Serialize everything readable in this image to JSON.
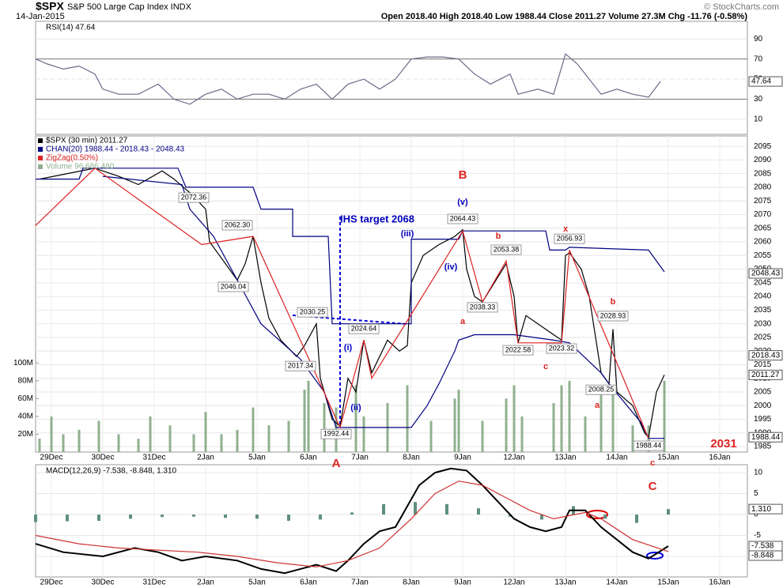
{
  "header": {
    "symbol": "$SPX",
    "name": "S&P 500 Large Cap Index INDX",
    "date": "14-Jan-2015",
    "quote": "Open 2018.40  High 2018.40  Low 1988.44  Close 2011.27  Volume 27.3M  Chg -11.76 (-0.58%)",
    "credit": "© StockCharts.com"
  },
  "chart_data": [
    {
      "type": "line",
      "title": "RSI(14) 47.64",
      "xlim": [
        -4,
        176
      ],
      "ylim": [
        -5,
        107.5
      ],
      "yticks": [
        10,
        30,
        50,
        70,
        90
      ],
      "levels": [
        30,
        70
      ],
      "series": [
        {
          "color": "#6a6a8a",
          "x": [
            -4,
            -1,
            3,
            7,
            11,
            13,
            17,
            22,
            27,
            31,
            35,
            39,
            43,
            47,
            51,
            55,
            59,
            63,
            67,
            71,
            75,
            79,
            83,
            87,
            91,
            95,
            99,
            103,
            107,
            111,
            116,
            118,
            123,
            127,
            130,
            133,
            136,
            139,
            143,
            147,
            151,
            154
          ],
          "values": [
            70,
            65,
            60,
            63,
            55,
            40,
            35,
            35,
            45,
            30,
            25,
            35,
            40,
            30,
            35,
            35,
            30,
            40,
            45,
            30,
            45,
            50,
            40,
            50,
            70,
            72,
            72,
            70,
            55,
            45,
            55,
            35,
            40,
            35,
            75,
            65,
            50,
            35,
            40,
            35,
            32,
            47.64
          ]
        }
      ],
      "last_values": [
        47.64
      ]
    },
    {
      "type": "line",
      "xlim": [
        -4,
        176
      ],
      "ylim": [
        1983,
        2098.8
      ],
      "yticks": [
        1985,
        1990,
        1995,
        2000,
        2005,
        2010,
        2015,
        2020,
        2025,
        2030,
        2035,
        2040,
        2045,
        2050,
        2055,
        2060,
        2065,
        2070,
        2075,
        2080,
        2085,
        2090,
        2095
      ],
      "xticks": [
        {
          "value": 0,
          "label": "29Dec"
        },
        {
          "value": 13,
          "label": "30Dec"
        },
        {
          "value": 26,
          "label": "31Dec"
        },
        {
          "value": 39,
          "label": "2Jan"
        },
        {
          "value": 52,
          "label": "5Jan"
        },
        {
          "value": 65,
          "label": "6Jan"
        },
        {
          "value": 78,
          "label": "7Jan"
        },
        {
          "value": 91,
          "label": "8Jan"
        },
        {
          "value": 104,
          "label": "9Jan"
        },
        {
          "value": 117,
          "label": "12Jan"
        },
        {
          "value": 130,
          "label": "13Jan"
        },
        {
          "value": 143,
          "label": "14Jan"
        },
        {
          "value": 156,
          "label": "15Jan"
        },
        {
          "value": 169,
          "label": "16Jan"
        }
      ],
      "series": [
        {
          "name": "$SPX (30 min) 2011.27",
          "color": "#000000",
          "x": [
            -3,
            11,
            17,
            22,
            28,
            31,
            35,
            39,
            40,
            43,
            47,
            49,
            51,
            53,
            55,
            58,
            62,
            64,
            67,
            68,
            71,
            73,
            75,
            77,
            79,
            81,
            85,
            88,
            90,
            91,
            94,
            98,
            102,
            104,
            105,
            107,
            109,
            112,
            115,
            117,
            118,
            120,
            125,
            129,
            130,
            131,
            134,
            136,
            139,
            141,
            142,
            143,
            147,
            150,
            151,
            153,
            155
          ],
          "values": [
            2083,
            2087,
            2084,
            2081,
            2086,
            2083,
            2078,
            2072,
            2060,
            2054,
            2046,
            2052,
            2062,
            2045,
            2032,
            2024,
            2018,
            2022,
            2030,
            2010,
            1995,
            1992.44,
            2010,
            2005,
            2024,
            2012,
            2024,
            2020,
            2022,
            2045,
            2055,
            2059,
            2062,
            2064.43,
            2050,
            2040,
            2038,
            2045,
            2052,
            2040,
            2023,
            2033,
            2028,
            2024,
            2055,
            2056,
            2050,
            2040,
            2012,
            2008,
            2028,
            2005,
            2000,
            1990,
            1988.44,
            2005,
            2011.27
          ]
        },
        {
          "name": "CHAN(20) 1988.44 - 2018.43 - 2048.43",
          "color": "#000080",
          "x": [
            -4,
            7,
            8,
            32,
            34,
            51,
            53,
            61,
            61,
            70,
            71,
            91,
            91,
            103,
            104,
            125,
            126,
            130,
            131,
            151,
            155
          ],
          "values": [
            2083,
            2083,
            2087,
            2087,
            2080,
            2080,
            2072,
            2072,
            2062,
            2062,
            2030,
            2030,
            2061,
            2061,
            2064,
            2064,
            2057,
            2057,
            2058,
            2057,
            2049
          ],
          "lower_x": [
            13,
            33,
            35,
            41,
            47,
            53,
            63,
            69,
            72,
            91,
            95,
            98,
            102,
            103,
            107,
            117,
            127,
            131,
            139,
            141,
            149,
            151,
            155
          ],
          "lower_values": [
            2084,
            2081,
            2072,
            2062,
            2046,
            2030,
            2017,
            2005,
            1992,
            1992,
            2000,
            2008,
            2020,
            2024,
            2026,
            2026,
            2024,
            2023,
            2012,
            2008,
            1994,
            1988,
            1988
          ]
        },
        {
          "name": "ZigZag(0.50%)",
          "color": "#dd2222",
          "x": [
            -4,
            11,
            38,
            51,
            73,
            79,
            81,
            104,
            109,
            115,
            118,
            129,
            131,
            151
          ],
          "values": [
            2066,
            2087,
            2059,
            2062,
            1992,
            2024,
            2010,
            2064,
            2038,
            2053,
            2023,
            2023,
            2057,
            1988
          ]
        }
      ],
      "volume": {
        "name": "Volume 96,686,480",
        "color": "#8fb08f",
        "ylim": [
          0,
          110
        ],
        "yticks": [
          {
            "value": 20,
            "label": "20M"
          },
          {
            "value": 40,
            "label": "40M"
          },
          {
            "value": 60,
            "label": "60M"
          },
          {
            "value": 80,
            "label": "80M"
          },
          {
            "value": 100,
            "label": "100M"
          }
        ],
        "x": [
          -3,
          0,
          3,
          7,
          12,
          17,
          22,
          25,
          30,
          36,
          39,
          43,
          47,
          51,
          55,
          60,
          64,
          65,
          69,
          72,
          77,
          79,
          85,
          90,
          96,
          102,
          103,
          109,
          115,
          117,
          119,
          127,
          129,
          131,
          135,
          139,
          142,
          147,
          151,
          155
        ],
        "values": [
          15,
          40,
          20,
          25,
          35,
          20,
          15,
          40,
          30,
          20,
          45,
          20,
          25,
          50,
          30,
          35,
          70,
          80,
          55,
          50,
          75,
          40,
          55,
          75,
          35,
          60,
          70,
          35,
          60,
          75,
          40,
          55,
          75,
          80,
          40,
          70,
          75,
          30,
          30,
          80
        ]
      },
      "price_labels": [
        {
          "label": "2072.36",
          "x": 36,
          "y": 2076.2
        },
        {
          "label": "2062.30",
          "x": 47,
          "y": 2066.1
        },
        {
          "label": "2046.04",
          "x": 46,
          "y": 2043.5
        },
        {
          "label": "2030.25",
          "x": 66,
          "y": 2034.2
        },
        {
          "label": "2017.34",
          "x": 63,
          "y": 2014.5
        },
        {
          "label": "1992.44",
          "x": 72,
          "y": 1989.6
        },
        {
          "label": "2024.64",
          "x": 79,
          "y": 2028.1
        },
        {
          "label": "2064.43",
          "x": 104,
          "y": 2068.4
        },
        {
          "label": "2053.38",
          "x": 115,
          "y": 2057.1
        },
        {
          "label": "2038.33",
          "x": 109,
          "y": 2036.0
        },
        {
          "label": "2022.58",
          "x": 118,
          "y": 2020.3
        },
        {
          "label": "2023.32",
          "x": 129,
          "y": 2020.9
        },
        {
          "label": "2056.93",
          "x": 131,
          "y": 2061.1
        },
        {
          "label": "2028.93",
          "x": 142,
          "y": 2032.8
        },
        {
          "label": "2008.25",
          "x": 139,
          "y": 2005.8
        },
        {
          "label": "1988.44",
          "x": 151,
          "y": 1985.3
        }
      ],
      "wave_labels": [
        {
          "label": "B",
          "x": 104,
          "y": 2084.3,
          "color": "#dd2222"
        },
        {
          "label": "(v)",
          "x": 104,
          "y": 2074.4,
          "color": "#0000bb"
        },
        {
          "label": "(iii)",
          "x": 90,
          "y": 2062.9,
          "color": "#0000bb"
        },
        {
          "label": "(iv)",
          "x": 101,
          "y": 2050.7,
          "color": "#0000bb"
        },
        {
          "label": "a",
          "x": 104,
          "y": 2030.7,
          "color": "#dd2222"
        },
        {
          "label": "b",
          "x": 113,
          "y": 2062.0,
          "color": "#dd2222"
        },
        {
          "label": "c",
          "x": 125,
          "y": 2014.2,
          "color": "#dd2222"
        },
        {
          "label": "x",
          "x": 130,
          "y": 2064.6,
          "color": "#dd2222"
        },
        {
          "label": "b",
          "x": 142,
          "y": 2038.0,
          "color": "#dd2222"
        },
        {
          "label": "a",
          "x": 138,
          "y": 2000.1,
          "color": "#dd2222"
        },
        {
          "label": "c",
          "x": 152,
          "y": 1978.9,
          "color": "#dd2222"
        },
        {
          "label": "A",
          "x": 72,
          "y": 1978.6,
          "color": "#dd2222"
        },
        {
          "label": "C",
          "x": 152,
          "y": 1970.2,
          "color": "#dd2222"
        },
        {
          "label": "(i)",
          "x": 75,
          "y": 2021.2,
          "color": "#0000bb"
        },
        {
          "label": "(ii)",
          "x": 77,
          "y": 1999.2,
          "color": "#0000bb"
        },
        {
          "label": "2031",
          "x": 170,
          "y": 1985.9,
          "color": "#dd2222"
        }
      ],
      "target_label": {
        "label": "IHS target 2068",
        "x": 73,
        "y": 2068.1,
        "color": "#0000bb"
      },
      "last_values": [
        2048.43,
        2018.43,
        2011.27,
        1988.44
      ]
    },
    {
      "type": "line",
      "title": "MACD(12,26,9) -7.538, -8.848, 1.310",
      "xlim": [
        -4,
        176
      ],
      "ylim": [
        -14.9,
        11.9
      ],
      "yticks": [
        -10,
        -5,
        0,
        5,
        10
      ],
      "xticks": [
        {
          "value": 0,
          "label": "29Dec"
        },
        {
          "value": 13,
          "label": "30Dec"
        },
        {
          "value": 26,
          "label": "31Dec"
        },
        {
          "value": 39,
          "label": "2Jan"
        },
        {
          "value": 52,
          "label": "5Jan"
        },
        {
          "value": 65,
          "label": "6Jan"
        },
        {
          "value": 78,
          "label": "7Jan"
        },
        {
          "value": 91,
          "label": "8Jan"
        },
        {
          "value": 104,
          "label": "9Jan"
        },
        {
          "value": 117,
          "label": "12Jan"
        },
        {
          "value": 130,
          "label": "13Jan"
        },
        {
          "value": 143,
          "label": "14Jan"
        },
        {
          "value": 156,
          "label": "15Jan"
        },
        {
          "value": 169,
          "label": "16Jan"
        }
      ],
      "series": [
        {
          "color": "#000000",
          "x": [
            -4,
            3,
            13,
            21,
            27,
            33,
            39,
            47,
            53,
            59,
            67,
            72,
            75,
            79,
            83,
            87,
            90,
            93,
            97,
            101,
            105,
            109,
            113,
            117,
            121,
            125,
            129,
            131,
            135,
            139,
            143,
            147,
            151,
            156
          ],
          "values": [
            -7,
            -9,
            -10,
            -8,
            -9,
            -11,
            -10,
            -11,
            -13,
            -14,
            -12,
            -13.5,
            -11,
            -7,
            -4,
            -3,
            2,
            7,
            10,
            11,
            10.5,
            7,
            3,
            -1,
            -3,
            -4,
            -3,
            1,
            1,
            -3,
            -6,
            -9,
            -10.5,
            -7.538
          ]
        },
        {
          "color": "#cc3333",
          "x": [
            -4,
            7,
            17,
            27,
            37,
            47,
            57,
            67,
            75,
            83,
            91,
            97,
            103,
            109,
            115,
            121,
            127,
            135,
            139,
            147,
            156
          ],
          "values": [
            -5,
            -7,
            -8,
            -8.5,
            -9,
            -10,
            -11.5,
            -12.5,
            -11,
            -8,
            -1,
            5,
            8,
            7,
            4,
            1,
            -1,
            0.5,
            -1,
            -6,
            -8.848
          ]
        }
      ],
      "histogram": {
        "color": "#5f8f7f",
        "x": [
          -4,
          4,
          12,
          20,
          28,
          36,
          44,
          52,
          60,
          68,
          76,
          84,
          92,
          100,
          108,
          116,
          124,
          132,
          140,
          148,
          156
        ],
        "values": [
          -1.8,
          -1.6,
          -1.5,
          -1.0,
          -0.6,
          -0.5,
          -0.8,
          -1.0,
          -1.5,
          -1.2,
          0.5,
          2.5,
          3.0,
          2.5,
          1.5,
          -0.5,
          -1.2,
          2.0,
          -1.0,
          -2.0,
          1.31
        ]
      },
      "last_values": [
        {
          "value": 1.31,
          "label": "1.310"
        },
        -7.538,
        -8.848
      ]
    }
  ]
}
